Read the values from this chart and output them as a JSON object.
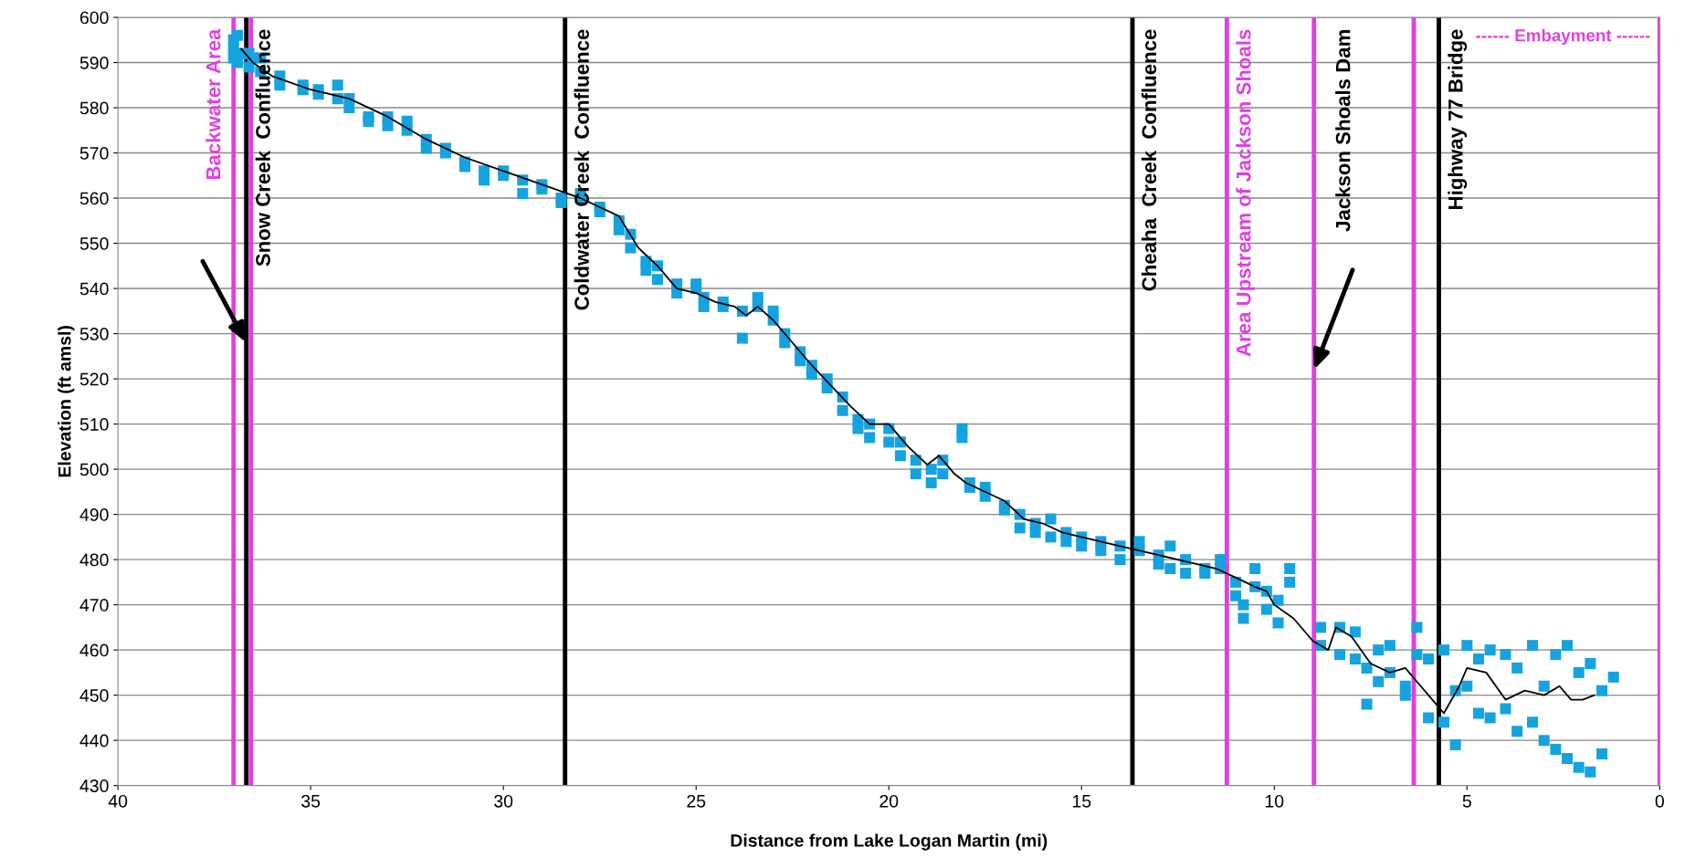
{
  "chart_data": {
    "type": "scatter",
    "xlabel": "Distance from Lake Logan Martin (mi)",
    "ylabel": "Elevation (ft amsl)",
    "xlim": [
      40,
      0
    ],
    "xticks": [
      40,
      35,
      30,
      25,
      20,
      15,
      10,
      5,
      0
    ],
    "ylim": [
      430,
      600
    ],
    "yticks": [
      430,
      440,
      450,
      460,
      470,
      480,
      490,
      500,
      510,
      520,
      530,
      540,
      550,
      560,
      570,
      580,
      590,
      600
    ],
    "grid": "y",
    "marker": "square",
    "series": [
      {
        "color": "#15a3e0",
        "x": [
          37.0,
          37.0,
          37.0,
          36.9,
          36.9,
          36.8,
          36.6,
          36.6,
          36.5,
          36.3,
          36.3,
          35.8,
          35.8,
          35.2,
          35.2,
          34.8,
          34.8,
          34.3,
          34.3,
          34.0,
          34.0,
          33.5,
          33.5,
          33.0,
          33.0,
          32.5,
          32.5,
          32.0,
          32.0,
          31.5,
          31.5,
          31.0,
          31.0,
          30.5,
          30.5,
          30.0,
          30.0,
          29.5,
          29.5,
          29.0,
          29.0,
          28.5,
          28.5,
          28.0,
          28.0,
          27.5,
          27.5,
          27.0,
          27.0,
          26.7,
          26.7,
          26.3,
          26.3,
          26.0,
          26.0,
          25.5,
          25.5,
          25.0,
          25.0,
          24.8,
          24.8,
          24.3,
          24.3,
          23.8,
          23.8,
          23.4,
          23.4,
          23.0,
          23.0,
          22.7,
          22.7,
          22.3,
          22.3,
          22.0,
          22.0,
          21.6,
          21.6,
          21.2,
          21.2,
          20.8,
          20.8,
          20.5,
          20.5,
          20.0,
          20.0,
          19.7,
          19.7,
          19.3,
          19.3,
          18.9,
          18.9,
          18.6,
          18.6,
          18.1,
          18.1,
          17.9,
          17.9,
          17.5,
          17.5,
          17.0,
          17.0,
          16.6,
          16.6,
          16.2,
          16.2,
          15.8,
          15.8,
          15.4,
          15.4,
          15.0,
          15.0,
          14.5,
          14.5,
          14.0,
          14.0,
          13.5,
          13.5,
          13.0,
          13.0,
          12.7,
          12.7,
          12.3,
          12.3,
          11.8,
          11.8,
          11.4,
          11.4,
          11.0,
          11.0,
          10.8,
          10.8,
          10.5,
          10.5,
          10.2,
          10.2,
          9.9,
          9.9,
          9.6,
          9.6,
          8.8,
          8.8,
          8.3,
          8.3,
          7.9,
          7.9,
          7.6,
          7.6,
          7.3,
          7.3,
          7.0,
          7.0,
          6.6,
          6.6,
          6.3,
          6.3,
          6.0,
          6.0,
          5.6,
          5.6,
          5.3,
          5.3,
          5.0,
          5.0,
          4.7,
          4.7,
          4.4,
          4.4,
          4.0,
          4.0,
          3.7,
          3.7,
          3.3,
          3.3,
          3.0,
          3.0,
          2.7,
          2.7,
          2.4,
          2.4,
          2.1,
          2.1,
          1.8,
          1.8,
          1.5,
          1.5,
          1.2
        ],
        "values": [
          595,
          593,
          591,
          590,
          596,
          592,
          592,
          589,
          591,
          591,
          588,
          587,
          585,
          585,
          584,
          583,
          584,
          585,
          582,
          580,
          582,
          578,
          577,
          578,
          576,
          577,
          575,
          573,
          571,
          571,
          570,
          568,
          567,
          566,
          564,
          566,
          565,
          564,
          561,
          563,
          562,
          560,
          559,
          561,
          560,
          558,
          557,
          555,
          553,
          552,
          549,
          546,
          544,
          545,
          542,
          541,
          539,
          540,
          541,
          538,
          536,
          536,
          537,
          535,
          529,
          538,
          536,
          535,
          533,
          530,
          528,
          526,
          524,
          523,
          521,
          520,
          518,
          516,
          513,
          511,
          509,
          510,
          507,
          506,
          509,
          506,
          503,
          502,
          499,
          500,
          497,
          502,
          499,
          509,
          507,
          497,
          496,
          496,
          494,
          492,
          491,
          490,
          487,
          488,
          486,
          489,
          485,
          486,
          484,
          485,
          483,
          484,
          482,
          483,
          480,
          482,
          484,
          481,
          479,
          483,
          478,
          480,
          477,
          478,
          477,
          480,
          478,
          475,
          472,
          467,
          470,
          478,
          474,
          473,
          469,
          471,
          466,
          478,
          475,
          465,
          461,
          465,
          459,
          464,
          458,
          456,
          448,
          460,
          453,
          461,
          455,
          452,
          450,
          465,
          459,
          458,
          445,
          460,
          444,
          451,
          439,
          461,
          452,
          446,
          458,
          460,
          445,
          459,
          447,
          456,
          442,
          461,
          444,
          440,
          452,
          438,
          459,
          461,
          436,
          434,
          455,
          433,
          457,
          437,
          451,
          454
        ]
      },
      {
        "type": "line",
        "color": "#000000",
        "marker": "none",
        "line_style": "solid",
        "x": [
          36.8,
          36.5,
          36.0,
          35.0,
          34.0,
          33.0,
          32.0,
          31.0,
          30.0,
          29.0,
          28.0,
          27.0,
          26.5,
          26.0,
          25.5,
          25.0,
          24.5,
          24.0,
          23.7,
          23.4,
          23.0,
          22.0,
          21.0,
          20.5,
          20.0,
          19.5,
          19.0,
          18.7,
          18.3,
          18.0,
          17.0,
          16.5,
          16.0,
          15.5,
          15.0,
          14.0,
          13.0,
          12.0,
          11.5,
          11.0,
          10.5,
          10.2,
          10.0,
          9.5,
          9.0,
          8.6,
          8.4,
          8.0,
          7.5,
          7.0,
          6.6,
          6.2,
          5.9,
          5.6,
          5.2,
          5.0,
          4.5,
          4.0,
          3.5,
          3.0,
          2.6,
          2.3,
          2.0,
          1.7
        ],
        "values": [
          593,
          590,
          587,
          584,
          582,
          578,
          573,
          569,
          566,
          563,
          560,
          556,
          549,
          545,
          540,
          539,
          537,
          536,
          534,
          536,
          533,
          523,
          514,
          510,
          510,
          505,
          501,
          503,
          499,
          497,
          493,
          489,
          488,
          486,
          485,
          483,
          481,
          479,
          478,
          476,
          474,
          473,
          470,
          467,
          462,
          460,
          465,
          463,
          457,
          455,
          456,
          452,
          449,
          446,
          452,
          456,
          455,
          449,
          451,
          450,
          452,
          449,
          449,
          450
        ]
      }
    ],
    "ref_lines": [
      {
        "axis": "x",
        "value": 37.0,
        "color": "#e040e0",
        "label": "Backwater Area"
      },
      {
        "axis": "x",
        "value": 36.67,
        "color": "#000000",
        "label": "Snow Creek  Confluence"
      },
      {
        "axis": "x",
        "value": 36.55,
        "color": "#e040e0"
      },
      {
        "axis": "x",
        "value": 28.4,
        "color": "#000000",
        "label": "Coldwater Creek  Confluence"
      },
      {
        "axis": "x",
        "value": 13.68,
        "color": "#000000",
        "label": "Cheaha  Creek  Confluence"
      },
      {
        "axis": "x",
        "value": 11.23,
        "color": "#e040e0",
        "label": "Area Upstream of Jackson Shoals"
      },
      {
        "axis": "x",
        "value": 8.97,
        "color": "#e040e0"
      },
      {
        "axis": "x",
        "value": 6.38,
        "color": "#e040e0"
      },
      {
        "axis": "x",
        "value": 5.73,
        "color": "#000000",
        "label": "Highway 77 Bridge"
      },
      {
        "axis": "x",
        "value": 0,
        "color": "#e040e0"
      }
    ],
    "annotations": [
      "Jackson Shoals Dam",
      "------ Embayment ------"
    ]
  }
}
